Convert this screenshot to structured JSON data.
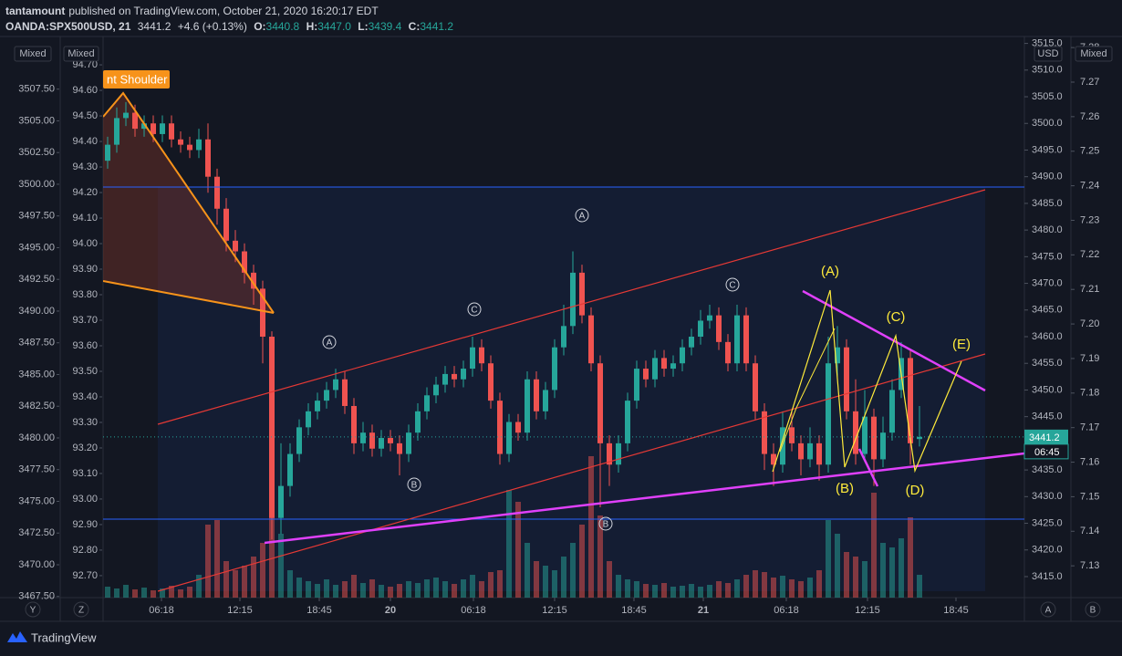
{
  "header": {
    "author": "tantamount",
    "published": "published on TradingView.com, October 21, 2020 16:20:17 EDT",
    "symbol": "OANDA:SPX500USD, 21",
    "last": "3441.2",
    "change": "+4.6 (+0.13%)",
    "o_label": "O:",
    "o": "3440.8",
    "h_label": "H:",
    "h": "3447.0",
    "l_label": "L:",
    "l": "3439.4",
    "c_label": "C:",
    "c": "3441.2"
  },
  "chart_data": {
    "type": "candlestick",
    "ohlc": [
      [
        3493,
        3497.5,
        3491.5,
        3496
      ],
      [
        3496,
        3503,
        3494.5,
        3501
      ],
      [
        3501,
        3504,
        3499.5,
        3502
      ],
      [
        3502,
        3503.5,
        3497.5,
        3499
      ],
      [
        3499,
        3501.5,
        3497.5,
        3500
      ],
      [
        3500,
        3501.5,
        3496.5,
        3498
      ],
      [
        3498,
        3501.5,
        3496.5,
        3500
      ],
      [
        3500,
        3501.5,
        3495.5,
        3497
      ],
      [
        3497,
        3498.5,
        3494.5,
        3496
      ],
      [
        3496,
        3497.5,
        3493.5,
        3495
      ],
      [
        3495,
        3499,
        3493.5,
        3497
      ],
      [
        3497,
        3500,
        3487,
        3490
      ],
      [
        3490,
        3491.5,
        3481,
        3484
      ],
      [
        3484,
        3486,
        3476,
        3478
      ],
      [
        3478,
        3480,
        3474,
        3476
      ],
      [
        3476,
        3477.5,
        3470,
        3472
      ],
      [
        3472,
        3473.5,
        3466,
        3469
      ],
      [
        3469,
        3470.5,
        3455,
        3460
      ],
      [
        3460,
        3461,
        3422,
        3426
      ],
      [
        3426,
        3440,
        3423,
        3432
      ],
      [
        3432,
        3440,
        3430,
        3438
      ],
      [
        3438,
        3444.5,
        3436.5,
        3443
      ],
      [
        3443,
        3447.5,
        3441.5,
        3446
      ],
      [
        3446,
        3449.5,
        3444.5,
        3448
      ],
      [
        3448,
        3451.5,
        3446.5,
        3450
      ],
      [
        3450,
        3454,
        3448.5,
        3452
      ],
      [
        3452,
        3453.5,
        3445.5,
        3447
      ],
      [
        3447,
        3448.5,
        3438,
        3440
      ],
      [
        3440,
        3444,
        3438.5,
        3442
      ],
      [
        3442,
        3443.5,
        3437.5,
        3439
      ],
      [
        3439,
        3442.5,
        3437.5,
        3441
      ],
      [
        3441,
        3442.5,
        3438.5,
        3440
      ],
      [
        3440,
        3441.5,
        3434,
        3438
      ],
      [
        3438,
        3443.5,
        3436.5,
        3442
      ],
      [
        3442,
        3447.5,
        3440.5,
        3446
      ],
      [
        3446,
        3450.5,
        3444.5,
        3449
      ],
      [
        3449,
        3452.5,
        3447.5,
        3451
      ],
      [
        3451,
        3454.5,
        3449.5,
        3453
      ],
      [
        3453,
        3454.5,
        3450.5,
        3452
      ],
      [
        3452,
        3455.5,
        3450.5,
        3454
      ],
      [
        3454,
        3460,
        3452.5,
        3458
      ],
      [
        3458,
        3459.5,
        3453.5,
        3455
      ],
      [
        3455,
        3456.5,
        3446.5,
        3448
      ],
      [
        3448,
        3449.5,
        3436,
        3438
      ],
      [
        3438,
        3445.5,
        3436.5,
        3444
      ],
      [
        3444,
        3445.5,
        3440.5,
        3442
      ],
      [
        3442,
        3453.5,
        3440.5,
        3452
      ],
      [
        3452,
        3453.5,
        3444.5,
        3446
      ],
      [
        3446,
        3451.5,
        3444.5,
        3450
      ],
      [
        3450,
        3459.5,
        3448.5,
        3458
      ],
      [
        3458,
        3466,
        3456.5,
        3462
      ],
      [
        3462,
        3476,
        3460.5,
        3472
      ],
      [
        3472,
        3473.5,
        3462.5,
        3464
      ],
      [
        3464,
        3465.5,
        3453.5,
        3455
      ],
      [
        3455,
        3456.5,
        3428,
        3440
      ],
      [
        3440,
        3441.5,
        3432,
        3436
      ],
      [
        3436,
        3441.5,
        3434.5,
        3440
      ],
      [
        3440,
        3449.5,
        3438.5,
        3448
      ],
      [
        3448,
        3455.5,
        3446.5,
        3454
      ],
      [
        3454,
        3455.5,
        3450.5,
        3452
      ],
      [
        3452,
        3457.5,
        3450.5,
        3456
      ],
      [
        3456,
        3457.5,
        3452.5,
        3454
      ],
      [
        3454,
        3456.5,
        3452.5,
        3455
      ],
      [
        3455,
        3459.5,
        3453.5,
        3458
      ],
      [
        3458,
        3461.5,
        3456.5,
        3460
      ],
      [
        3460,
        3465,
        3458.5,
        3463
      ],
      [
        3463,
        3466,
        3461.5,
        3464
      ],
      [
        3464,
        3465.5,
        3457.5,
        3459
      ],
      [
        3459,
        3460.5,
        3453.5,
        3455
      ],
      [
        3455,
        3466,
        3453.5,
        3464
      ],
      [
        3464,
        3465.5,
        3453.5,
        3455
      ],
      [
        3455,
        3456.5,
        3444.5,
        3446
      ],
      [
        3446,
        3447.5,
        3435,
        3438
      ],
      [
        3438,
        3440,
        3432,
        3436
      ],
      [
        3436,
        3446,
        3434.5,
        3443
      ],
      [
        3443,
        3446,
        3438.5,
        3440
      ],
      [
        3440,
        3441.5,
        3434,
        3437
      ],
      [
        3437,
        3443,
        3435.5,
        3440
      ],
      [
        3440,
        3441.5,
        3433,
        3436
      ],
      [
        3436,
        3460,
        3434.5,
        3455
      ],
      [
        3455,
        3462,
        3452,
        3458
      ],
      [
        3458,
        3459.5,
        3444.5,
        3446
      ],
      [
        3446,
        3452,
        3436,
        3438
      ],
      [
        3438,
        3450,
        3436.5,
        3445
      ],
      [
        3445,
        3446.5,
        3432,
        3437
      ],
      [
        3437,
        3445,
        3435.5,
        3442
      ],
      [
        3442,
        3452,
        3440.5,
        3450
      ],
      [
        3450,
        3459,
        3448.5,
        3456
      ],
      [
        3456,
        3457.5,
        3436,
        3440
      ],
      [
        3440.8,
        3447.0,
        3439.4,
        3441.2
      ]
    ],
    "volume": [
      12,
      10,
      14,
      9,
      11,
      8,
      10,
      13,
      9,
      12,
      25,
      80,
      85,
      40,
      30,
      35,
      45,
      60,
      95,
      70,
      30,
      22,
      18,
      15,
      20,
      14,
      18,
      25,
      16,
      20,
      14,
      12,
      15,
      18,
      16,
      20,
      22,
      18,
      15,
      20,
      25,
      18,
      28,
      30,
      118,
      105,
      60,
      40,
      35,
      30,
      45,
      60,
      80,
      155,
      90,
      40,
      25,
      20,
      18,
      15,
      14,
      16,
      12,
      13,
      15,
      12,
      14,
      18,
      16,
      20,
      25,
      30,
      28,
      22,
      24,
      20,
      18,
      22,
      30,
      85,
      70,
      50,
      45,
      40,
      115,
      60,
      55,
      65,
      88,
      25
    ],
    "vlim": [
      0,
      160
    ],
    "up_color": "#26a69a",
    "down_color": "#ef5350",
    "ylim": [
      3411.06,
      3516.3
    ],
    "yticks": [
      {
        "value": 3415,
        "label": "3415.0"
      },
      {
        "value": 3420,
        "label": "3420.0"
      },
      {
        "value": 3425,
        "label": "3425.0"
      },
      {
        "value": 3430,
        "label": "3430.0"
      },
      {
        "value": 3435,
        "label": "3435.0"
      },
      {
        "value": 3440,
        "label": "3440.0"
      },
      {
        "value": 3445,
        "label": "3445.0"
      },
      {
        "value": 3450,
        "label": "3450.0"
      },
      {
        "value": 3455,
        "label": "3455.0"
      },
      {
        "value": 3460,
        "label": "3460.0"
      },
      {
        "value": 3465,
        "label": "3465.0"
      },
      {
        "value": 3470,
        "label": "3470.0"
      },
      {
        "value": 3475,
        "label": "3475.0"
      },
      {
        "value": 3480,
        "label": "3480.0"
      },
      {
        "value": 3485,
        "label": "3485.0"
      },
      {
        "value": 3490,
        "label": "3490.0"
      },
      {
        "value": 3495,
        "label": "3495.0"
      },
      {
        "value": 3500,
        "label": "3500.0"
      },
      {
        "value": 3505,
        "label": "3505.0"
      },
      {
        "value": 3510,
        "label": "3510.0"
      },
      {
        "value": 3515,
        "label": "3515.0"
      }
    ],
    "currency": "USD",
    "left_axes": [
      {
        "label": "Mixed",
        "ylim": [
          3467.41,
          3511.65
        ],
        "ticks": [
          {
            "value": 3467.5,
            "label": "3467.50"
          },
          {
            "value": 3470,
            "label": "3470.00"
          },
          {
            "value": 3472.5,
            "label": "3472.50"
          },
          {
            "value": 3475,
            "label": "3475.00"
          },
          {
            "value": 3477.5,
            "label": "3477.50"
          },
          {
            "value": 3480,
            "label": "3480.00"
          },
          {
            "value": 3482.5,
            "label": "3482.50"
          },
          {
            "value": 3485,
            "label": "3485.00"
          },
          {
            "value": 3487.5,
            "label": "3487.50"
          },
          {
            "value": 3490,
            "label": "3490.00"
          },
          {
            "value": 3492.5,
            "label": "3492.50"
          },
          {
            "value": 3495,
            "label": "3495.00"
          },
          {
            "value": 3497.5,
            "label": "3497.50"
          },
          {
            "value": 3500,
            "label": "3500.00"
          },
          {
            "value": 3502.5,
            "label": "3502.50"
          },
          {
            "value": 3505,
            "label": "3505.00"
          },
          {
            "value": 3507.5,
            "label": "3507.50"
          }
        ]
      },
      {
        "label": "Mixed",
        "ylim": [
          92.614,
          94.811
        ],
        "ticks": [
          {
            "value": 92.7,
            "label": "92.70"
          },
          {
            "value": 92.8,
            "label": "92.80"
          },
          {
            "value": 92.9,
            "label": "92.90"
          },
          {
            "value": 93.0,
            "label": "93.00"
          },
          {
            "value": 93.1,
            "label": "93.10"
          },
          {
            "value": 93.2,
            "label": "93.20"
          },
          {
            "value": 93.3,
            "label": "93.30"
          },
          {
            "value": 93.4,
            "label": "93.40"
          },
          {
            "value": 93.5,
            "label": "93.50"
          },
          {
            "value": 93.6,
            "label": "93.60"
          },
          {
            "value": 93.7,
            "label": "93.70"
          },
          {
            "value": 93.8,
            "label": "93.80"
          },
          {
            "value": 93.9,
            "label": "93.90"
          },
          {
            "value": 94.0,
            "label": "94.00"
          },
          {
            "value": 94.1,
            "label": "94.10"
          },
          {
            "value": 94.2,
            "label": "94.20"
          },
          {
            "value": 94.3,
            "label": "94.30"
          },
          {
            "value": 94.4,
            "label": "94.40"
          },
          {
            "value": 94.5,
            "label": "94.50"
          },
          {
            "value": 94.6,
            "label": "94.60"
          },
          {
            "value": 94.7,
            "label": "94.70"
          }
        ]
      }
    ],
    "right_axis2": {
      "label": "Mixed",
      "ylim": [
        7.1208,
        7.2832
      ],
      "ticks": [
        {
          "value": 7.13,
          "label": "7.13"
        },
        {
          "value": 7.14,
          "label": "7.14"
        },
        {
          "value": 7.15,
          "label": "7.15"
        },
        {
          "value": 7.16,
          "label": "7.16"
        },
        {
          "value": 7.17,
          "label": "7.17"
        },
        {
          "value": 7.18,
          "label": "7.18"
        },
        {
          "value": 7.19,
          "label": "7.19"
        },
        {
          "value": 7.2,
          "label": "7.20"
        },
        {
          "value": 7.21,
          "label": "7.21"
        },
        {
          "value": 7.22,
          "label": "7.22"
        },
        {
          "value": 7.23,
          "label": "7.23"
        },
        {
          "value": 7.24,
          "label": "7.24"
        },
        {
          "value": 7.25,
          "label": "7.25"
        },
        {
          "value": 7.26,
          "label": "7.26"
        },
        {
          "value": 7.27,
          "label": "7.27"
        },
        {
          "value": 7.28,
          "label": "7.28"
        }
      ]
    },
    "xticks": [
      {
        "value": 5.9,
        "label": "06:18"
      },
      {
        "value": 14.5,
        "label": "12:15"
      },
      {
        "value": 23.2,
        "label": "18:45"
      },
      {
        "value": 31,
        "label": "20"
      },
      {
        "value": 40.1,
        "label": "06:18"
      },
      {
        "value": 49,
        "label": "12:15"
      },
      {
        "value": 57.7,
        "label": "18:45"
      },
      {
        "value": 65.3,
        "label": "21"
      },
      {
        "value": 74.4,
        "label": "06:18"
      },
      {
        "value": 83.3,
        "label": "12:15"
      },
      {
        "value": 93,
        "label": "18:45"
      }
    ],
    "price_tag": "3441.2",
    "countdown": "06:45",
    "pattern_label": "nt Shoulder",
    "circle_labels": [
      "A",
      "B",
      "C",
      "A",
      "C",
      "B"
    ],
    "wave_labels": [
      "(A)",
      "(B)",
      "(C)",
      "(D)",
      "(E)"
    ]
  },
  "footer": {
    "y": "Y",
    "z": "Z",
    "a": "A",
    "b": "B",
    "brand": "TradingView"
  }
}
